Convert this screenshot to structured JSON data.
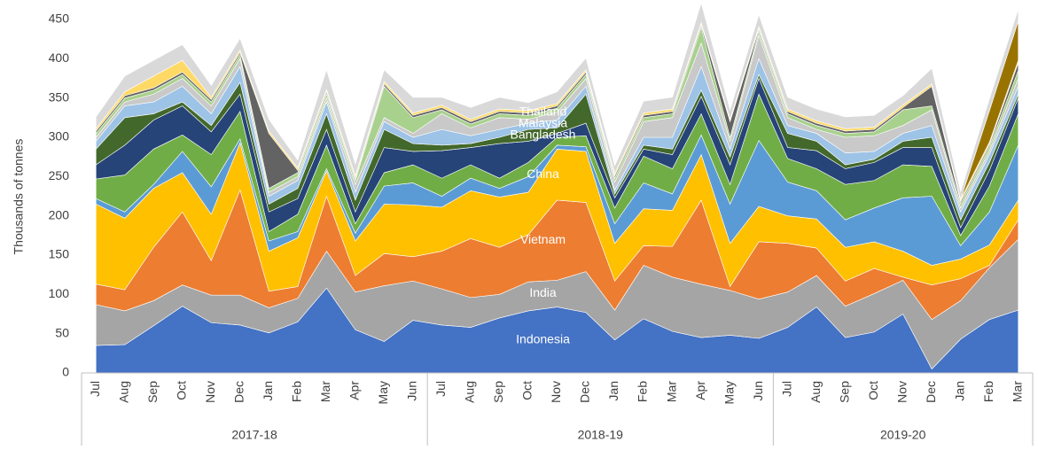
{
  "chart_data": {
    "type": "stacked-area",
    "y_label": "Thousands of tonnes",
    "categories": [
      "Jul",
      "Aug",
      "Sep",
      "Oct",
      "Nov",
      "Dec",
      "Jan",
      "Feb",
      "Mar",
      "Apr",
      "May",
      "Jun",
      "Jul",
      "Aug",
      "Sep",
      "Oct",
      "Nov",
      "Dec",
      "Jan",
      "Feb",
      "Mar",
      "Apr",
      "May",
      "Jun",
      "Jul",
      "Aug",
      "Sep",
      "Oct",
      "Nov",
      "Dec",
      "Jan",
      "Feb",
      "Mar"
    ],
    "groups": [
      "2017-18",
      "2018-19",
      "2019-20"
    ],
    "ylim": [
      0,
      450
    ],
    "yticks": [
      0,
      50,
      100,
      150,
      200,
      250,
      300,
      350,
      400,
      450
    ],
    "grid": false,
    "series": [
      {
        "name": "Indonesia",
        "color": "#4472c4",
        "values": [
          35,
          36,
          60,
          85,
          64,
          61,
          51,
          65,
          108,
          55,
          40,
          67,
          61,
          58,
          70,
          79,
          84,
          77,
          42,
          69,
          53,
          45,
          48,
          44,
          58,
          84,
          45,
          52,
          75,
          5,
          43,
          68,
          80
        ]
      },
      {
        "name": "India",
        "color": "#a5a5a5",
        "values": [
          52,
          43,
          32,
          27,
          35,
          38,
          32,
          30,
          47,
          48,
          71,
          50,
          46,
          38,
          30,
          37,
          34,
          52,
          38,
          68,
          69,
          68,
          57,
          50,
          45,
          40,
          40,
          49,
          43,
          63,
          49,
          66,
          90
        ]
      },
      {
        "name": "Vietnam",
        "color": "#ed7d31",
        "values": [
          26,
          27,
          68,
          93,
          44,
          134,
          21,
          15,
          70,
          21,
          41,
          31,
          48,
          75,
          60,
          60,
          102,
          88,
          37,
          25,
          39,
          107,
          5,
          73,
          62,
          35,
          32,
          32,
          4,
          44,
          28,
          3,
          25
        ]
      },
      {
        "name": "China",
        "color": "#ffc000",
        "values": [
          102,
          91,
          75,
          50,
          59,
          60,
          51,
          62,
          32,
          44,
          63,
          66,
          56,
          61,
          64,
          54,
          65,
          65,
          48,
          47,
          46,
          58,
          55,
          45,
          35,
          37,
          43,
          34,
          33,
          25,
          25,
          26,
          25
        ]
      },
      {
        "color": "#5b9bd5",
        "values": [
          7,
          8,
          5,
          27,
          35,
          5,
          13,
          8,
          3,
          10,
          23,
          28,
          14,
          16,
          11,
          20,
          5,
          6,
          25,
          33,
          21,
          25,
          50,
          84,
          43,
          36,
          35,
          43,
          68,
          88,
          17,
          42,
          70
        ]
      },
      {
        "color": "#70ad47",
        "values": [
          25,
          47,
          45,
          21,
          41,
          35,
          12,
          22,
          30,
          12,
          17,
          23,
          23,
          17,
          13,
          18,
          10,
          14,
          20,
          34,
          32,
          27,
          25,
          59,
          30,
          28,
          45,
          35,
          42,
          38,
          13,
          33,
          40
        ]
      },
      {
        "name": "Bangladesh",
        "color": "#264478",
        "values": [
          18,
          38,
          37,
          37,
          29,
          22,
          25,
          20,
          20,
          15,
          32,
          17,
          35,
          22,
          44,
          27,
          5,
          16,
          13,
          9,
          18,
          22,
          25,
          20,
          14,
          23,
          20,
          23,
          22,
          24,
          10,
          20,
          20
        ]
      },
      {
        "name": "Malaysia",
        "color": "#43682b",
        "values": [
          20,
          35,
          8,
          5,
          8,
          15,
          10,
          13,
          20,
          15,
          23,
          10,
          7,
          5,
          8,
          15,
          7,
          37,
          5,
          5,
          7,
          8,
          10,
          5,
          18,
          12,
          5,
          4,
          8,
          13,
          10,
          10,
          5
        ]
      },
      {
        "name": "Thailand",
        "color": "#9dc3e6",
        "values": [
          10,
          15,
          15,
          20,
          15,
          20,
          10,
          10,
          15,
          10,
          10,
          8,
          20,
          10,
          10,
          8,
          10,
          10,
          5,
          10,
          15,
          30,
          10,
          20,
          10,
          10,
          15,
          10,
          10,
          15,
          10,
          10,
          10
        ]
      },
      {
        "color": "#c9c9c9",
        "values": [
          5,
          5,
          10,
          10,
          10,
          10,
          5,
          5,
          5,
          10,
          5,
          5,
          20,
          10,
          15,
          5,
          10,
          10,
          10,
          20,
          25,
          30,
          10,
          30,
          10,
          5,
          20,
          20,
          10,
          20,
          5,
          5,
          10
        ]
      },
      {
        "color": "#a9d18e",
        "values": [
          5,
          5,
          5,
          5,
          5,
          5,
          5,
          5,
          5,
          5,
          40,
          20,
          5,
          5,
          5,
          5,
          5,
          5,
          5,
          5,
          5,
          20,
          5,
          5,
          5,
          5,
          5,
          5,
          20,
          5,
          5,
          5,
          10
        ]
      },
      {
        "color": "#636363",
        "values": [
          3,
          3,
          3,
          3,
          3,
          3,
          70,
          3,
          3,
          3,
          3,
          3,
          3,
          3,
          3,
          3,
          3,
          3,
          3,
          3,
          3,
          3,
          20,
          3,
          3,
          3,
          3,
          3,
          3,
          25,
          3,
          3,
          10
        ]
      },
      {
        "color": "#ffd966",
        "values": [
          3,
          5,
          15,
          15,
          3,
          3,
          3,
          3,
          3,
          3,
          3,
          3,
          3,
          3,
          3,
          3,
          3,
          3,
          3,
          3,
          3,
          3,
          3,
          3,
          3,
          3,
          3,
          3,
          3,
          3,
          3,
          3,
          3
        ]
      },
      {
        "color": "#997300",
        "values": [
          0,
          0,
          0,
          0,
          0,
          0,
          0,
          0,
          0,
          0,
          0,
          0,
          0,
          0,
          0,
          0,
          0,
          0,
          0,
          0,
          0,
          0,
          0,
          0,
          0,
          0,
          0,
          0,
          0,
          0,
          0,
          40,
          50
        ]
      },
      {
        "color": "#d9d9d9",
        "values": [
          15,
          20,
          20,
          20,
          15,
          15,
          15,
          10,
          25,
          15,
          15,
          20,
          10,
          15,
          15,
          10,
          15,
          15,
          10,
          15,
          15,
          25,
          12,
          15,
          15,
          15,
          15,
          15,
          12,
          20,
          10,
          15,
          15
        ]
      }
    ]
  }
}
